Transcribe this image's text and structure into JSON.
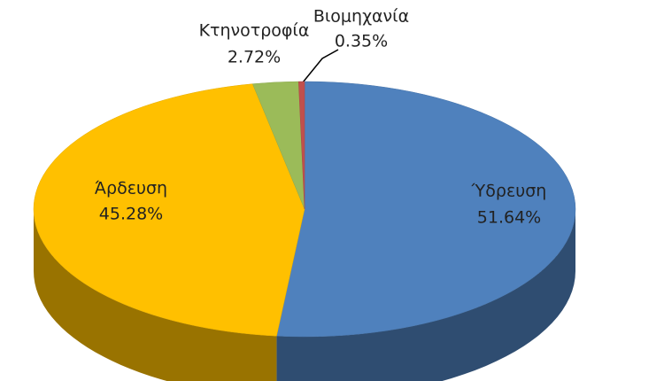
{
  "chart_data": {
    "type": "pie3d",
    "categories": [
      "Ύδρευση",
      "Άρδευση",
      "Κτηνοτροφία",
      "Βιομηχανία"
    ],
    "values": [
      51.64,
      45.28,
      2.72,
      0.35
    ],
    "value_labels": [
      "51.64%",
      "45.28%",
      "2.72%",
      "0.35%"
    ],
    "colors": [
      "#4f81bd",
      "#ffc000",
      "#9bbb59",
      "#c0504d"
    ]
  }
}
